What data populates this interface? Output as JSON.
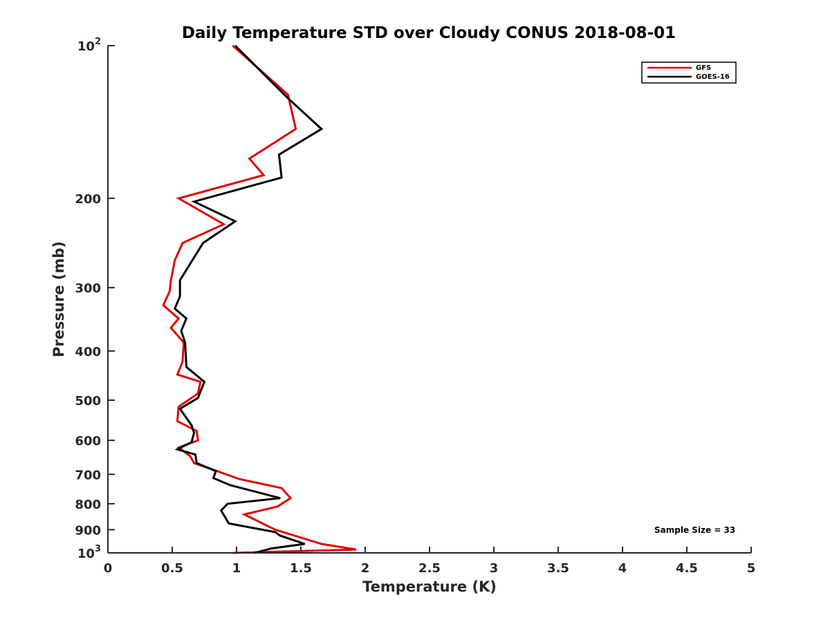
{
  "chart_data": {
    "type": "line",
    "title": "Daily Temperature STD over Cloudy CONUS 2018-08-01",
    "xlabel": "Temperature (K)",
    "ylabel": "Pressure (mb)",
    "xlim": [
      0,
      5
    ],
    "ylim": [
      100,
      1000
    ],
    "yscale": "log",
    "y_reversed": true,
    "grid": false,
    "legend_position": "top-right",
    "x_ticks": [
      {
        "value": 0,
        "label": "0"
      },
      {
        "value": 0.5,
        "label": "0.5"
      },
      {
        "value": 1,
        "label": "1"
      },
      {
        "value": 1.5,
        "label": "1.5"
      },
      {
        "value": 2,
        "label": "2"
      },
      {
        "value": 2.5,
        "label": "2.5"
      },
      {
        "value": 3,
        "label": "3"
      },
      {
        "value": 3.5,
        "label": "3.5"
      },
      {
        "value": 4,
        "label": "4"
      },
      {
        "value": 4.5,
        "label": "4.5"
      },
      {
        "value": 5,
        "label": "5"
      }
    ],
    "y_ticks": [
      {
        "value": 100,
        "label": "10",
        "exp": "2"
      },
      {
        "value": 200,
        "label": "200"
      },
      {
        "value": 300,
        "label": "300"
      },
      {
        "value": 400,
        "label": "400"
      },
      {
        "value": 500,
        "label": "500"
      },
      {
        "value": 600,
        "label": "600"
      },
      {
        "value": 700,
        "label": "700"
      },
      {
        "value": 800,
        "label": "800"
      },
      {
        "value": 900,
        "label": "900"
      },
      {
        "value": 1000,
        "label": "10",
        "exp": "3"
      }
    ],
    "annotation": "Sample Size = 33",
    "series": [
      {
        "name": "GFS",
        "color": "#e00000",
        "points": [
          [
            0.97,
            100
          ],
          [
            1.4,
            125
          ],
          [
            1.46,
            146
          ],
          [
            1.1,
            167
          ],
          [
            1.21,
            180
          ],
          [
            0.55,
            200
          ],
          [
            0.9,
            225
          ],
          [
            0.58,
            245
          ],
          [
            0.52,
            265
          ],
          [
            0.49,
            290
          ],
          [
            0.48,
            305
          ],
          [
            0.43,
            325
          ],
          [
            0.55,
            345
          ],
          [
            0.49,
            360
          ],
          [
            0.59,
            385
          ],
          [
            0.58,
            420
          ],
          [
            0.54,
            445
          ],
          [
            0.72,
            460
          ],
          [
            0.7,
            485
          ],
          [
            0.55,
            515
          ],
          [
            0.54,
            550
          ],
          [
            0.69,
            575
          ],
          [
            0.7,
            600
          ],
          [
            0.55,
            620
          ],
          [
            0.64,
            645
          ],
          [
            0.67,
            665
          ],
          [
            0.85,
            690
          ],
          [
            1.02,
            715
          ],
          [
            1.35,
            745
          ],
          [
            1.42,
            780
          ],
          [
            1.32,
            810
          ],
          [
            1.06,
            840
          ],
          [
            1.3,
            900
          ],
          [
            1.66,
            960
          ],
          [
            1.93,
            985
          ],
          [
            0.97,
            1000
          ]
        ]
      },
      {
        "name": "GOES-16",
        "color": "#000000",
        "points": [
          [
            0.99,
            100
          ],
          [
            1.4,
            127
          ],
          [
            1.66,
            146
          ],
          [
            1.33,
            164
          ],
          [
            1.35,
            182
          ],
          [
            0.67,
            203
          ],
          [
            0.99,
            222
          ],
          [
            0.74,
            245
          ],
          [
            0.56,
            290
          ],
          [
            0.56,
            312
          ],
          [
            0.52,
            330
          ],
          [
            0.61,
            345
          ],
          [
            0.57,
            365
          ],
          [
            0.6,
            385
          ],
          [
            0.61,
            430
          ],
          [
            0.75,
            460
          ],
          [
            0.7,
            495
          ],
          [
            0.56,
            520
          ],
          [
            0.65,
            560
          ],
          [
            0.67,
            580
          ],
          [
            0.65,
            605
          ],
          [
            0.54,
            625
          ],
          [
            0.68,
            640
          ],
          [
            0.69,
            665
          ],
          [
            0.84,
            690
          ],
          [
            0.82,
            712
          ],
          [
            0.95,
            735
          ],
          [
            1.34,
            780
          ],
          [
            0.93,
            800
          ],
          [
            0.88,
            825
          ],
          [
            0.94,
            875
          ],
          [
            1.3,
            910
          ],
          [
            1.34,
            925
          ],
          [
            1.53,
            960
          ],
          [
            1.27,
            980
          ],
          [
            1.14,
            1000
          ]
        ]
      }
    ]
  }
}
